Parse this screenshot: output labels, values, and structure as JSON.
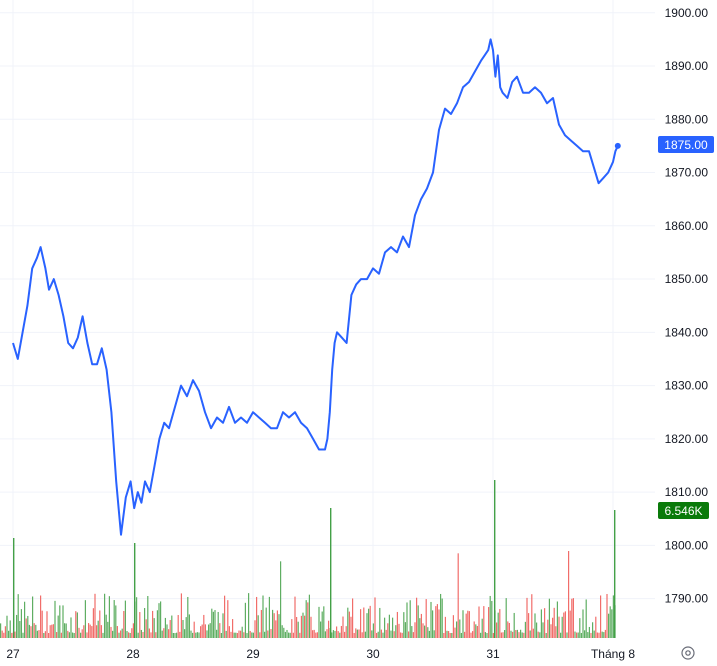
{
  "chart_data": {
    "type": "line",
    "title": "",
    "xlabel": "",
    "ylabel": "",
    "x_tick_labels": [
      "27",
      "28",
      "29",
      "30",
      "31",
      "Tháng 8"
    ],
    "y_ticks": [
      "1790.00",
      "1800.00",
      "1810.00",
      "1820.00",
      "1830.00",
      "1840.00",
      "1850.00",
      "1860.00",
      "1870.00",
      "1880.00",
      "1890.00",
      "1900.00"
    ],
    "ylim": [
      1782.6,
      1902.4
    ],
    "xlim": [
      27,
      32.2
    ],
    "grid": true,
    "price_series": {
      "x": [
        27.0,
        27.04,
        27.08,
        27.12,
        27.16,
        27.2,
        27.23,
        27.27,
        27.3,
        27.34,
        27.38,
        27.42,
        27.46,
        27.5,
        27.54,
        27.58,
        27.62,
        27.66,
        27.7,
        27.74,
        27.78,
        27.82,
        27.86,
        27.9,
        27.94,
        27.98,
        28.01,
        28.04,
        28.07,
        28.1,
        28.14,
        28.18,
        28.22,
        28.26,
        28.3,
        28.35,
        28.4,
        28.45,
        28.5,
        28.55,
        28.6,
        28.65,
        28.7,
        28.75,
        28.8,
        28.85,
        28.9,
        28.95,
        29.0,
        29.05,
        29.1,
        29.15,
        29.2,
        29.25,
        29.3,
        29.35,
        29.4,
        29.45,
        29.5,
        29.55,
        29.6,
        29.62,
        29.64,
        29.66,
        29.68,
        29.7,
        29.74,
        29.78,
        29.82,
        29.86,
        29.9,
        29.95,
        30.0,
        30.05,
        30.1,
        30.15,
        30.2,
        30.25,
        30.3,
        30.35,
        30.4,
        30.45,
        30.5,
        30.55,
        30.6,
        30.65,
        30.7,
        30.75,
        30.8,
        30.85,
        30.9,
        30.93,
        30.96,
        30.98,
        31.0,
        31.02,
        31.04,
        31.06,
        31.08,
        31.12,
        31.16,
        31.2,
        31.25,
        31.3,
        31.35,
        31.4,
        31.45,
        31.5,
        31.55,
        31.6,
        31.65,
        31.7,
        31.75,
        31.8,
        31.84,
        31.88,
        31.92,
        31.96,
        32.0,
        32.02,
        32.04
      ],
      "y": [
        1838,
        1835,
        1840,
        1845,
        1852,
        1854,
        1856,
        1852,
        1848,
        1850,
        1847,
        1843,
        1838,
        1837,
        1839,
        1843,
        1838,
        1834,
        1834,
        1837,
        1833,
        1825,
        1812,
        1802,
        1809,
        1812,
        1807,
        1810,
        1808,
        1812,
        1810,
        1815,
        1820,
        1823,
        1822,
        1826,
        1830,
        1828,
        1831,
        1829,
        1825,
        1822,
        1824,
        1823,
        1826,
        1823,
        1824,
        1823,
        1825,
        1824,
        1823,
        1822,
        1822,
        1825,
        1824,
        1825,
        1823,
        1822,
        1820,
        1818,
        1818,
        1820,
        1825,
        1833,
        1838,
        1840,
        1839,
        1838,
        1847,
        1849,
        1850,
        1850,
        1852,
        1851,
        1855,
        1856,
        1855,
        1858,
        1856,
        1862,
        1865,
        1867,
        1870,
        1878,
        1882,
        1881,
        1883,
        1886,
        1887,
        1889,
        1891,
        1892,
        1893,
        1895,
        1893,
        1888,
        1892,
        1886,
        1885,
        1884,
        1887,
        1888,
        1885,
        1885,
        1886,
        1885,
        1883,
        1884,
        1879,
        1877,
        1876,
        1875,
        1874,
        1874,
        1871,
        1868,
        1869,
        1870,
        1872,
        1874,
        1875
      ]
    },
    "volume_series": {
      "name": "",
      "colors": [
        "#ef5350",
        "#43a047"
      ]
    },
    "last_value_label": "1875.00",
    "volume_label": "6.546K",
    "colors": {
      "line": "#2962ff",
      "last_value_bg": "#2962ff",
      "volume_label_bg": "#0a7a0a",
      "grid": "#f0f3fa",
      "tick_text": "#131722"
    }
  },
  "icons": {
    "settings": "settings-icon"
  }
}
